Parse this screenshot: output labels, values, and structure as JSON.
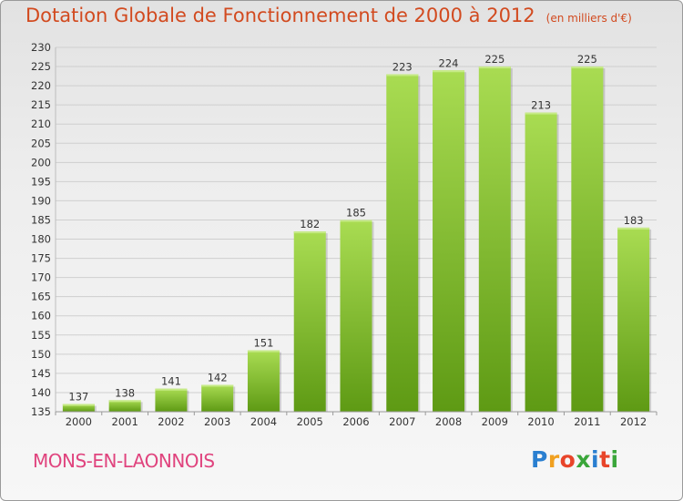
{
  "title": "Dotation Globale de Fonctionnement de 2000 à 2012",
  "unit_note": "(en milliers d'€)",
  "commune": "MONS-EN-LAONNOIS",
  "logo": {
    "text": "Proxiti",
    "letter_colors": [
      "#2a7fd0",
      "#f0a020",
      "#e8452a",
      "#3aa63a",
      "#2a7fd0",
      "#e8452a",
      "#3aa63a"
    ]
  },
  "colors": {
    "title": "#d24a1f",
    "commune": "#e0447e",
    "bar_top": "#a9dc52",
    "bar_bottom": "#5e9a14"
  },
  "chart_data": {
    "type": "bar",
    "title": "Dotation Globale de Fonctionnement de 2000 à 2012",
    "xlabel": "",
    "ylabel": "",
    "categories": [
      "2000",
      "2001",
      "2002",
      "2003",
      "2004",
      "2005",
      "2006",
      "2007",
      "2008",
      "2009",
      "2010",
      "2011",
      "2012"
    ],
    "values": [
      137,
      138,
      141,
      142,
      151,
      182,
      185,
      223,
      224,
      225,
      213,
      225,
      183
    ],
    "ylim": [
      135,
      230
    ],
    "ytick_step": 5,
    "grid": true
  }
}
